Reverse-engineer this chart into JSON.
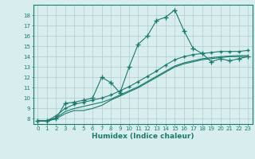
{
  "xlabel": "Humidex (Indice chaleur)",
  "x_values": [
    0,
    1,
    2,
    3,
    4,
    5,
    6,
    7,
    8,
    9,
    10,
    11,
    12,
    13,
    14,
    15,
    16,
    17,
    18,
    19,
    20,
    21,
    22,
    23
  ],
  "line1_y": [
    7.8,
    7.8,
    8.0,
    9.5,
    9.6,
    9.8,
    10.0,
    12.0,
    11.5,
    10.5,
    13.0,
    15.2,
    16.0,
    17.5,
    17.8,
    18.5,
    16.5,
    14.8,
    14.3,
    13.5,
    13.8,
    13.6,
    13.8,
    14.0
  ],
  "line2_y": [
    7.8,
    7.8,
    8.0,
    8.5,
    8.8,
    8.8,
    9.0,
    9.3,
    9.8,
    10.2,
    10.6,
    11.0,
    11.5,
    12.0,
    12.5,
    13.0,
    13.3,
    13.5,
    13.7,
    13.8,
    13.9,
    14.0,
    14.0,
    14.0
  ],
  "line3_y": [
    7.8,
    7.8,
    8.1,
    8.7,
    9.0,
    9.2,
    9.4,
    9.6,
    9.9,
    10.3,
    10.7,
    11.1,
    11.6,
    12.1,
    12.6,
    13.1,
    13.4,
    13.6,
    13.8,
    13.9,
    14.0,
    14.05,
    14.1,
    14.1
  ],
  "line4_y": [
    7.8,
    7.8,
    8.3,
    9.0,
    9.4,
    9.6,
    9.8,
    10.0,
    10.3,
    10.7,
    11.1,
    11.6,
    12.1,
    12.6,
    13.2,
    13.7,
    14.0,
    14.2,
    14.3,
    14.4,
    14.5,
    14.5,
    14.5,
    14.6
  ],
  "line_color": "#1a7a6e",
  "bg_color": "#d8eeee",
  "grid_color": "#b0cccc",
  "ylim": [
    7.5,
    19.0
  ],
  "yticks": [
    8,
    9,
    10,
    11,
    12,
    13,
    14,
    15,
    16,
    17,
    18
  ],
  "xlim": [
    -0.5,
    23.5
  ],
  "tick_fontsize": 5.0,
  "xlabel_fontsize": 6.5
}
